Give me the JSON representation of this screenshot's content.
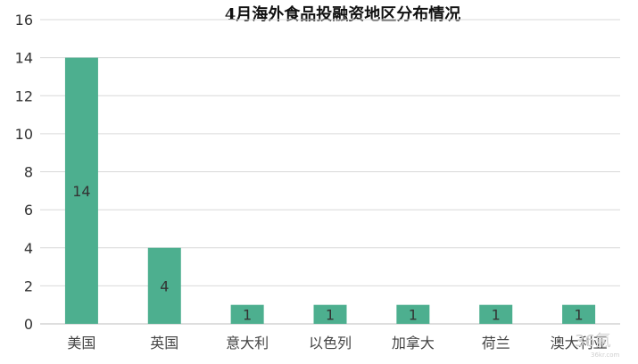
{
  "chart_data": {
    "type": "bar",
    "title": "4月海外食品投融资地区分布情况",
    "categories": [
      "美国",
      "英国",
      "意大利",
      "以色列",
      "加拿大",
      "荷兰",
      "澳大利亚"
    ],
    "values": [
      14,
      4,
      1,
      1,
      1,
      1,
      1
    ],
    "ylim": [
      0,
      16
    ],
    "yticks": [
      0,
      2,
      4,
      6,
      8,
      10,
      12,
      14,
      16
    ],
    "grid": true,
    "bar_color": "#4daf8f",
    "data_labels": [
      "14",
      "4",
      "1",
      "1",
      "1",
      "1",
      "1"
    ]
  },
  "watermark": {
    "text": "36氪",
    "sub": "36kr.com"
  }
}
